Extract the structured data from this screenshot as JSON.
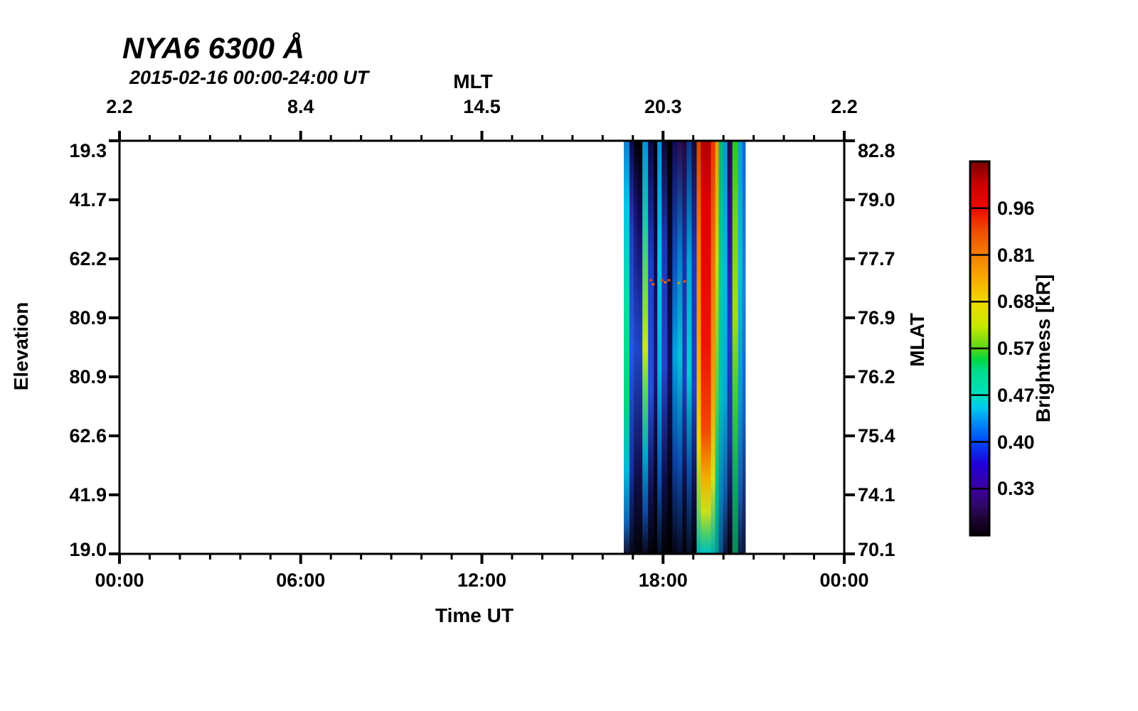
{
  "title": "NYA6 6300 Å",
  "subtitle": "2015-02-16 00:00-24:00 UT",
  "chart_data": {
    "type": "heatmap",
    "title": "NYA6 6300 Å",
    "subtitle": "2015-02-16 00:00-24:00 UT",
    "grid": "off",
    "bottom_axis": {
      "label": "Time UT",
      "tick_labels": [
        "00:00",
        "06:00",
        "12:00",
        "18:00",
        "00:00"
      ],
      "range_hours": [
        0,
        24
      ],
      "minor_tick_every_hours": 1,
      "major_tick_every_hours": 6
    },
    "top_axis": {
      "label": "MLT",
      "tick_labels": [
        "2.2",
        "8.4",
        "14.5",
        "20.3",
        "2.2"
      ]
    },
    "left_axis": {
      "label": "Elevation",
      "tick_labels": [
        "19.3",
        "41.7",
        "62.2",
        "80.9",
        "80.9",
        "62.6",
        "41.9",
        "19.0"
      ]
    },
    "right_axis": {
      "label": "MLAT",
      "tick_labels": [
        "82.8",
        "79.0",
        "77.7",
        "76.9",
        "76.2",
        "75.4",
        "74.1",
        "70.1"
      ]
    },
    "colorbar": {
      "label": "Brightness [kR]",
      "tick_labels": [
        "0.96",
        "0.81",
        "0.68",
        "0.57",
        "0.47",
        "0.40",
        "0.33"
      ],
      "segments": 8,
      "gradient": [
        [
          0,
          "#7a0000"
        ],
        [
          0.06,
          "#c80000"
        ],
        [
          0.125,
          "#ee0800"
        ],
        [
          0.19,
          "#f05000"
        ],
        [
          0.25,
          "#f57e00"
        ],
        [
          0.31,
          "#f8a800"
        ],
        [
          0.375,
          "#f0d800"
        ],
        [
          0.44,
          "#c8e800"
        ],
        [
          0.5,
          "#58d818"
        ],
        [
          0.53,
          "#00d840"
        ],
        [
          0.56,
          "#00dc8c"
        ],
        [
          0.625,
          "#00e0c0"
        ],
        [
          0.66,
          "#00c8f0"
        ],
        [
          0.69,
          "#0098f8"
        ],
        [
          0.75,
          "#0048f8"
        ],
        [
          0.81,
          "#2000d8"
        ],
        [
          0.875,
          "#3c00a0"
        ],
        [
          0.92,
          "#300868"
        ],
        [
          0.96,
          "#1c0430"
        ],
        [
          1,
          "#050008"
        ]
      ]
    },
    "data_block": {
      "time_start_hours": 16.7,
      "time_end_hours": 20.72,
      "description": "630.0 nm auroral brightness stripes; brightest red column near 19:20 UT tapering yellow-green-cyan toward low elevation; columns fade to black at bottom edge",
      "stripes": [
        {
          "x0": 0.0,
          "x1": 0.047,
          "stops": [
            [
              0,
              "#1080d0"
            ],
            [
              0.15,
              "#00c4e8"
            ],
            [
              0.4,
              "#00e0a0"
            ],
            [
              0.62,
              "#00d878"
            ],
            [
              0.8,
              "#00b8d8"
            ],
            [
              0.93,
              "#1060b0"
            ],
            [
              1,
              "#141430"
            ]
          ]
        },
        {
          "x0": 0.047,
          "x1": 0.082,
          "stops": [
            [
              0,
              "#100a50"
            ],
            [
              0.22,
              "#2040c0"
            ],
            [
              0.5,
              "#2858e0"
            ],
            [
              0.8,
              "#1830a0"
            ],
            [
              1,
              "#08081a"
            ]
          ]
        },
        {
          "x0": 0.082,
          "x1": 0.112,
          "stops": [
            [
              0,
              "#020208"
            ],
            [
              0.16,
              "#181070"
            ],
            [
              0.5,
              "#2048c8"
            ],
            [
              0.84,
              "#0c0c40"
            ],
            [
              1,
              "#040410"
            ]
          ]
        },
        {
          "x0": 0.112,
          "x1": 0.153,
          "stops": [
            [
              0,
              "#010104"
            ],
            [
              0.2,
              "#100c60"
            ],
            [
              0.5,
              "#1c44cc"
            ],
            [
              0.8,
              "#101050"
            ],
            [
              1,
              "#030308"
            ]
          ]
        },
        {
          "x0": 0.153,
          "x1": 0.2,
          "stops": [
            [
              0,
              "#0a90d8"
            ],
            [
              0.2,
              "#20c8a8"
            ],
            [
              0.42,
              "#90e030"
            ],
            [
              0.5,
              "#c8e818"
            ],
            [
              0.6,
              "#60d860"
            ],
            [
              0.76,
              "#00a8c8"
            ],
            [
              0.9,
              "#1048a0"
            ],
            [
              1,
              "#0a0a20"
            ]
          ]
        },
        {
          "x0": 0.2,
          "x1": 0.247,
          "stops": [
            [
              0,
              "#0c0848"
            ],
            [
              0.3,
              "#1c40c8"
            ],
            [
              0.6,
              "#2450d8"
            ],
            [
              0.85,
              "#101050"
            ],
            [
              1,
              "#020208"
            ]
          ]
        },
        {
          "x0": 0.247,
          "x1": 0.276,
          "stops": [
            [
              0,
              "#000002"
            ],
            [
              0.3,
              "#0e0a48"
            ],
            [
              0.55,
              "#181478"
            ],
            [
              0.8,
              "#060620"
            ],
            [
              1,
              "#010103"
            ]
          ]
        },
        {
          "x0": 0.276,
          "x1": 0.312,
          "stops": [
            [
              0,
              "#0890d8"
            ],
            [
              0.3,
              "#00c8e8"
            ],
            [
              0.56,
              "#00b4e0"
            ],
            [
              0.82,
              "#0c50b0"
            ],
            [
              1,
              "#081028"
            ]
          ]
        },
        {
          "x0": 0.312,
          "x1": 0.359,
          "stops": [
            [
              0,
              "#0c0830"
            ],
            [
              0.25,
              "#1a38b8"
            ],
            [
              0.55,
              "#2244cc"
            ],
            [
              0.82,
              "#0e0e48"
            ],
            [
              1,
              "#020206"
            ]
          ]
        },
        {
          "x0": 0.359,
          "x1": 0.4,
          "stops": [
            [
              0,
              "#000001"
            ],
            [
              0.3,
              "#0a0838"
            ],
            [
              0.55,
              "#121068"
            ],
            [
              0.82,
              "#040418"
            ],
            [
              1,
              "#000001"
            ]
          ]
        },
        {
          "x0": 0.4,
          "x1": 0.441,
          "stops": [
            [
              0,
              "#140c58"
            ],
            [
              0.3,
              "#1050c0"
            ],
            [
              0.52,
              "#00a0e0"
            ],
            [
              0.78,
              "#0c40a0"
            ],
            [
              1,
              "#060614"
            ]
          ]
        },
        {
          "x0": 0.441,
          "x1": 0.482,
          "stops": [
            [
              0,
              "#2a0a50"
            ],
            [
              0.26,
              "#0878c8"
            ],
            [
              0.52,
              "#00c4d8"
            ],
            [
              0.78,
              "#0c50b0"
            ],
            [
              1,
              "#0a0c2c"
            ]
          ]
        },
        {
          "x0": 0.482,
          "x1": 0.518,
          "stops": [
            [
              0,
              "#200840"
            ],
            [
              0.3,
              "#1634a8"
            ],
            [
              0.58,
              "#1c40c0"
            ],
            [
              0.84,
              "#0c0c40"
            ],
            [
              1,
              "#030309"
            ]
          ]
        },
        {
          "x0": 0.518,
          "x1": 0.559,
          "stops": [
            [
              0,
              "#0c3890"
            ],
            [
              0.3,
              "#00a8d8"
            ],
            [
              0.56,
              "#00d0d0"
            ],
            [
              0.8,
              "#0c50a8"
            ],
            [
              1,
              "#081028"
            ]
          ]
        },
        {
          "x0": 0.559,
          "x1": 0.6,
          "stops": [
            [
              0,
              "#1c0838"
            ],
            [
              0.3,
              "#1838b8"
            ],
            [
              0.6,
              "#1f44c4"
            ],
            [
              0.86,
              "#0d0d40"
            ],
            [
              1,
              "#020206"
            ]
          ]
        },
        {
          "x0": 0.6,
          "x1": 0.635,
          "stops": [
            [
              0,
              "#d04800"
            ],
            [
              0.25,
              "#f08000"
            ],
            [
              0.52,
              "#f0a800"
            ],
            [
              0.74,
              "#e8d800"
            ],
            [
              0.9,
              "#70d060"
            ],
            [
              1,
              "#00b0b0"
            ]
          ]
        },
        {
          "x0": 0.635,
          "x1": 0.718,
          "stops": [
            [
              0,
              "#b40000"
            ],
            [
              0.15,
              "#e00000"
            ],
            [
              0.5,
              "#ee1404"
            ],
            [
              0.7,
              "#f04800"
            ],
            [
              0.82,
              "#f0b000"
            ],
            [
              0.9,
              "#c8e020"
            ],
            [
              0.96,
              "#40cc70"
            ],
            [
              1,
              "#00c0c0"
            ]
          ]
        },
        {
          "x0": 0.718,
          "x1": 0.753,
          "stops": [
            [
              0,
              "#e83800"
            ],
            [
              0.3,
              "#f07000"
            ],
            [
              0.62,
              "#f0a400"
            ],
            [
              0.82,
              "#d8e018"
            ],
            [
              0.93,
              "#50c870"
            ],
            [
              1,
              "#00b0b0"
            ]
          ]
        },
        {
          "x0": 0.753,
          "x1": 0.782,
          "stops": [
            [
              0,
              "#e8a000"
            ],
            [
              0.3,
              "#c0dc10"
            ],
            [
              0.62,
              "#58d048"
            ],
            [
              0.86,
              "#00b890"
            ],
            [
              1,
              "#089890"
            ]
          ]
        },
        {
          "x0": 0.782,
          "x1": 0.818,
          "stops": [
            [
              0,
              "#00b878"
            ],
            [
              0.32,
              "#00cc9c"
            ],
            [
              0.62,
              "#00c0b8"
            ],
            [
              0.86,
              "#0880b8"
            ],
            [
              1,
              "#0c5088"
            ]
          ]
        },
        {
          "x0": 0.818,
          "x1": 0.853,
          "stops": [
            [
              0,
              "#0898d0"
            ],
            [
              0.32,
              "#00bce0"
            ],
            [
              0.62,
              "#00a8d8"
            ],
            [
              0.86,
              "#1058a8"
            ],
            [
              1,
              "#0c1840"
            ]
          ]
        },
        {
          "x0": 0.853,
          "x1": 0.894,
          "stops": [
            [
              0,
              "#24084a"
            ],
            [
              0.2,
              "#2c1488"
            ],
            [
              0.46,
              "#1c40b8"
            ],
            [
              0.72,
              "#163898"
            ],
            [
              0.92,
              "#0c0c38"
            ],
            [
              1,
              "#050510"
            ]
          ]
        },
        {
          "x0": 0.894,
          "x1": 0.941,
          "stops": [
            [
              0,
              "#28c828"
            ],
            [
              0.2,
              "#70d818"
            ],
            [
              0.42,
              "#a0e010"
            ],
            [
              0.62,
              "#40cc40"
            ],
            [
              0.82,
              "#10a868"
            ],
            [
              1,
              "#0c8858"
            ]
          ]
        },
        {
          "x0": 0.941,
          "x1": 0.976,
          "stops": [
            [
              0,
              "#08a0d8"
            ],
            [
              0.32,
              "#00c0e8"
            ],
            [
              0.62,
              "#0898d0"
            ],
            [
              0.86,
              "#1858b0"
            ],
            [
              1,
              "#102048"
            ]
          ]
        },
        {
          "x0": 0.976,
          "x1": 1.0,
          "stops": [
            [
              0,
              "#1868c8"
            ],
            [
              0.36,
              "#2080d8"
            ],
            [
              0.66,
              "#1860c0"
            ],
            [
              0.9,
              "#182860"
            ],
            [
              1,
              "#101838"
            ]
          ]
        }
      ],
      "speckles": [
        {
          "x": 0.21,
          "y": 0.335,
          "color": "#e04800"
        },
        {
          "x": 0.23,
          "y": 0.345,
          "color": "#f06000"
        },
        {
          "x": 0.3,
          "y": 0.335,
          "color": "#e87000"
        },
        {
          "x": 0.33,
          "y": 0.34,
          "color": "#d88000"
        },
        {
          "x": 0.36,
          "y": 0.335,
          "color": "#e05000"
        },
        {
          "x": 0.44,
          "y": 0.342,
          "color": "#c8a000"
        },
        {
          "x": 0.49,
          "y": 0.338,
          "color": "#e05800"
        }
      ]
    },
    "axis_color": "#000000",
    "background_color": "#ffffff"
  }
}
